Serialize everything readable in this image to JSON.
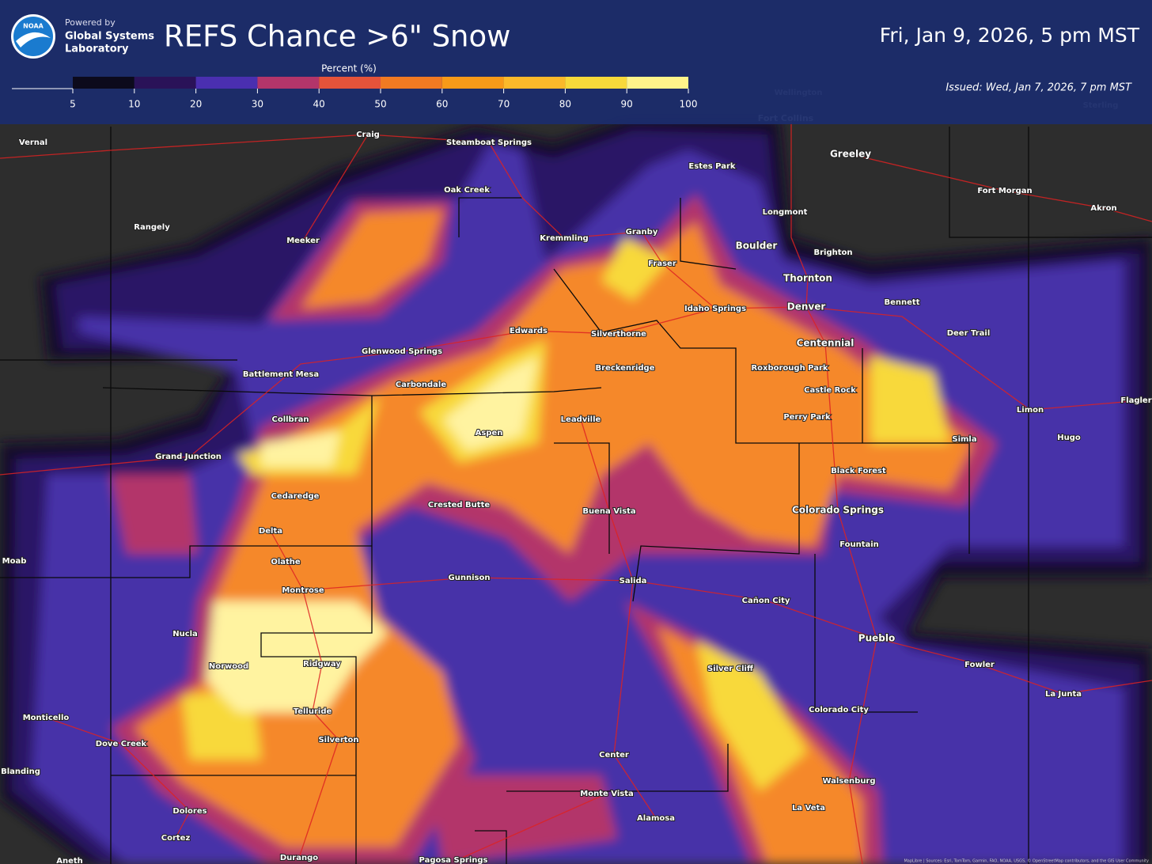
{
  "header": {
    "logo": "NOAA",
    "powered_by": "Powered by",
    "org": [
      "Global Systems",
      "Laboratory"
    ],
    "title": "REFS Chance >6\" Snow",
    "valid": "Fri, Jan 9, 2026, 5 pm MST",
    "issued": "Issued: Wed, Jan 7, 2026, 7 pm MST"
  },
  "legend": {
    "title": "Percent (%)",
    "ticks": [
      5,
      10,
      20,
      30,
      40,
      50,
      60,
      70,
      80,
      90,
      100
    ],
    "colors": [
      "#0c0a1c",
      "#2a1258",
      "#4a2fb0",
      "#b3356a",
      "#e5533a",
      "#f07a22",
      "#f89a18",
      "#fbb92a",
      "#f8d93a",
      "#fff48a"
    ]
  },
  "places": [
    "Wellington",
    "Fort Collins",
    "Sterling",
    "Vernal",
    "Craig",
    "Steamboat Springs",
    "Oak Creek",
    "Estes Park",
    "Greeley",
    "Fort Morgan",
    "Akron",
    "Rangely",
    "Meeker",
    "Kremmling",
    "Granby",
    "Longmont",
    "Boulder",
    "Brighton",
    "Fraser",
    "Thornton",
    "Idaho Springs",
    "Denver",
    "Bennett",
    "Edwards",
    "Silverthorne",
    "Deer Trail",
    "Centennial",
    "Glenwood Springs",
    "Battlement Mesa",
    "Breckenridge",
    "Roxborough Park",
    "Carbondale",
    "Castle Rock",
    "Flagler",
    "Collbran",
    "Leadville",
    "Perry Park",
    "Limon",
    "Aspen",
    "Simla",
    "Hugo",
    "Grand Junction",
    "Black Forest",
    "Cedaredge",
    "Crested Butte",
    "Buena Vista",
    "Colorado Springs",
    "Delta",
    "Fountain",
    "Moab",
    "Olathe",
    "Gunnison",
    "Salida",
    "Montrose",
    "Cañon City",
    "Nucla",
    "Pueblo",
    "Ridgway",
    "Norwood",
    "Silver Cliff",
    "Fowler",
    "Telluride",
    "Colorado City",
    "La Junta",
    "Monticello",
    "Silverton",
    "Dove Creek",
    "Center",
    "Blanding",
    "Walsenburg",
    "Monte Vista",
    "Dolores",
    "La Veta",
    "Alamosa",
    "Cortez",
    "Durango",
    "Pagosa Springs",
    "Aneth"
  ],
  "attribution": "MapLibre | Sources: Esri, TomTom, Garmin, FAO, NOAA, USGS, © OpenStreetMap contributors, and the GIS User Community"
}
